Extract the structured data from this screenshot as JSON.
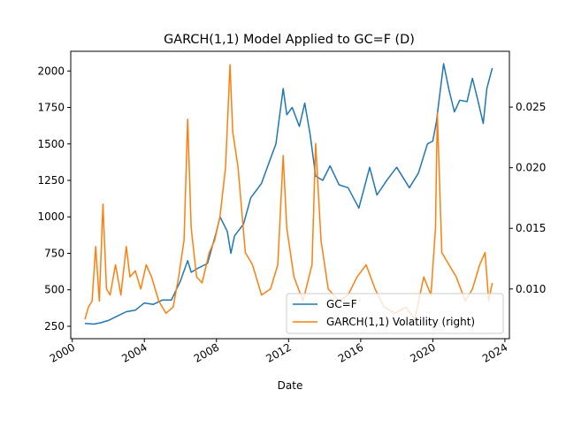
{
  "chart_data": {
    "type": "line",
    "title": "GARCH(1,1) Model Applied to GC=F (D)",
    "xlabel": "Date",
    "ylabel": "",
    "ylabel_right": "",
    "x_ticks": [
      "2000",
      "2004",
      "2008",
      "2012",
      "2016",
      "2020",
      "2024"
    ],
    "y_ticks_left": [
      250,
      500,
      750,
      1000,
      1250,
      1500,
      1750,
      2000
    ],
    "y_ticks_left_labels": [
      "250",
      "500",
      "750",
      "1000",
      "1250",
      "1500",
      "1750",
      "2000"
    ],
    "y_ticks_right": [
      0.01,
      0.015,
      0.02,
      0.025
    ],
    "y_ticks_right_labels": [
      "0.010",
      "0.015",
      "0.020",
      "0.025"
    ],
    "xlim": [
      "1999-12",
      "2024-04"
    ],
    "ylim_left": [
      165,
      2135
    ],
    "ylim_right": [
      0.0059,
      0.0296
    ],
    "legend_position": "lower right",
    "grid": false,
    "series": [
      {
        "name": "GC=F",
        "axis": "left",
        "color": "#1f77b4",
        "x": [
          2000.7,
          2001.2,
          2001.6,
          2002.0,
          2002.5,
          2003.0,
          2003.5,
          2004.0,
          2004.5,
          2005.0,
          2005.5,
          2006.0,
          2006.4,
          2006.6,
          2007.0,
          2007.5,
          2008.0,
          2008.2,
          2008.6,
          2008.8,
          2009.0,
          2009.5,
          2009.9,
          2010.5,
          2011.0,
          2011.3,
          2011.7,
          2011.9,
          2012.2,
          2012.6,
          2012.9,
          2013.2,
          2013.5,
          2013.9,
          2014.3,
          2014.8,
          2015.3,
          2015.9,
          2016.5,
          2016.9,
          2017.5,
          2018.0,
          2018.7,
          2019.2,
          2019.7,
          2020.0,
          2020.2,
          2020.6,
          2020.9,
          2021.2,
          2021.5,
          2021.9,
          2022.2,
          2022.5,
          2022.8,
          2023.0,
          2023.3
        ],
        "values": [
          270,
          265,
          275,
          290,
          320,
          350,
          360,
          410,
          400,
          430,
          430,
          560,
          700,
          620,
          650,
          680,
          900,
          1000,
          900,
          750,
          870,
          950,
          1130,
          1230,
          1400,
          1500,
          1880,
          1700,
          1750,
          1620,
          1780,
          1560,
          1280,
          1250,
          1350,
          1220,
          1200,
          1060,
          1340,
          1150,
          1260,
          1340,
          1200,
          1300,
          1500,
          1520,
          1650,
          2050,
          1870,
          1720,
          1800,
          1790,
          1950,
          1800,
          1640,
          1880,
          2020
        ]
      },
      {
        "name": "GARCH(1,1) Volatility (right)",
        "axis": "right",
        "color": "#ff7f0e",
        "x": [
          2000.7,
          2000.9,
          2001.1,
          2001.3,
          2001.5,
          2001.7,
          2001.9,
          2002.1,
          2002.4,
          2002.7,
          2003.0,
          2003.2,
          2003.5,
          2003.8,
          2004.1,
          2004.4,
          2004.8,
          2005.2,
          2005.6,
          2005.9,
          2006.2,
          2006.4,
          2006.6,
          2006.9,
          2007.2,
          2007.6,
          2007.9,
          2008.2,
          2008.5,
          2008.75,
          2008.9,
          2009.2,
          2009.6,
          2010.0,
          2010.5,
          2011.0,
          2011.4,
          2011.7,
          2011.9,
          2012.3,
          2012.8,
          2013.3,
          2013.5,
          2013.8,
          2014.2,
          2014.8,
          2015.3,
          2015.8,
          2016.3,
          2016.8,
          2017.3,
          2017.9,
          2018.5,
          2019.0,
          2019.5,
          2019.9,
          2020.15,
          2020.25,
          2020.5,
          2020.9,
          2021.3,
          2021.8,
          2022.2,
          2022.6,
          2022.9,
          2023.1,
          2023.3
        ],
        "values": [
          0.0075,
          0.0085,
          0.009,
          0.0135,
          0.009,
          0.017,
          0.01,
          0.0095,
          0.012,
          0.0095,
          0.0135,
          0.011,
          0.0115,
          0.01,
          0.012,
          0.011,
          0.009,
          0.008,
          0.0085,
          0.011,
          0.014,
          0.024,
          0.015,
          0.011,
          0.0105,
          0.013,
          0.014,
          0.016,
          0.02,
          0.0285,
          0.023,
          0.02,
          0.013,
          0.012,
          0.0095,
          0.01,
          0.012,
          0.021,
          0.015,
          0.011,
          0.009,
          0.012,
          0.022,
          0.014,
          0.01,
          0.009,
          0.0095,
          0.011,
          0.012,
          0.01,
          0.0085,
          0.008,
          0.0085,
          0.0075,
          0.011,
          0.0095,
          0.015,
          0.0245,
          0.013,
          0.012,
          0.011,
          0.009,
          0.01,
          0.012,
          0.013,
          0.009,
          0.0105
        ]
      }
    ]
  }
}
